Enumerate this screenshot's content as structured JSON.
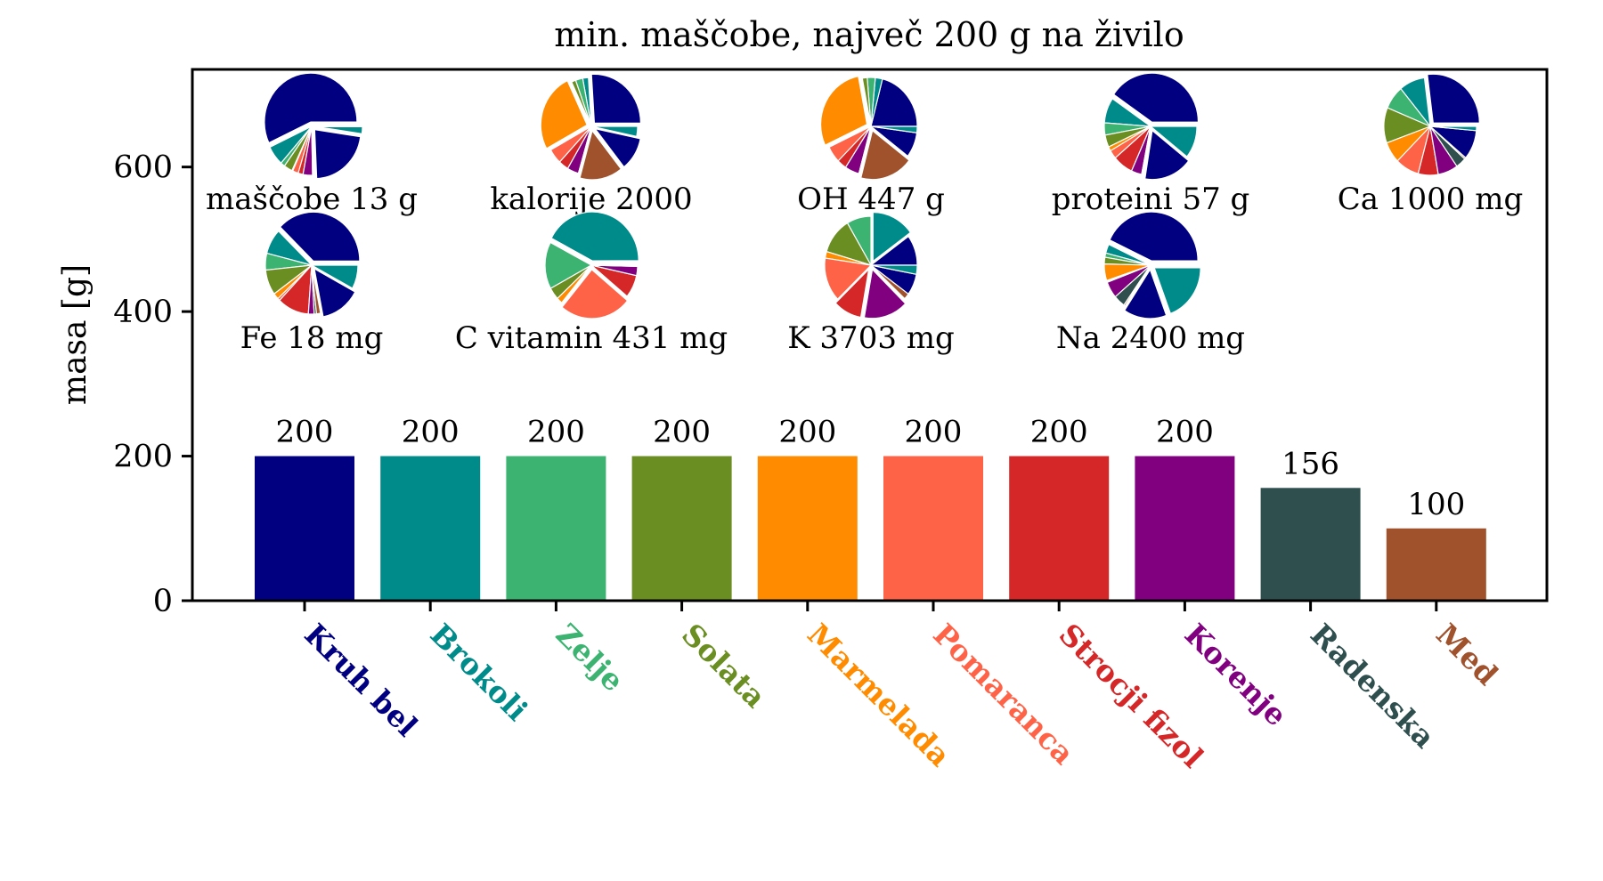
{
  "chart_data": {
    "type": "bar",
    "title": "min. maščobe, največ 200 g na živilo",
    "xlabel": "",
    "ylabel": "masa [g]",
    "ylim": [
      0,
      735
    ],
    "yticks": [
      0,
      200,
      400,
      600
    ],
    "grid": false,
    "categories": [
      "Kruh bel",
      "Brokoli",
      "Zelje",
      "Solata",
      "Marmelada",
      "Pomaranca",
      "Strocji fizol",
      "Korenje",
      "Radenska",
      "Med"
    ],
    "values": [
      200,
      200,
      200,
      200,
      200,
      200,
      200,
      200,
      156,
      100
    ],
    "value_labels": [
      "200",
      "200",
      "200",
      "200",
      "200",
      "200",
      "200",
      "200",
      "156",
      "100"
    ],
    "colors": [
      "#000080",
      "#008B8B",
      "#3CB371",
      "#6B8E23",
      "#FF8C00",
      "#FF6347",
      "#D62728",
      "#800080",
      "#2F4F4F",
      "#A0522D"
    ],
    "pie_slice_colors": [
      "#000080",
      "#008B8B",
      "#3CB371",
      "#6B8E23",
      "#FF8C00",
      "#FF6347",
      "#D62728",
      "#800080",
      "#2F4F4F",
      "#A0522D",
      "#000080",
      "#008B8B"
    ],
    "pies": [
      {
        "label": "maščobe 13 g",
        "fractions": [
          57,
          6.5,
          1.5,
          3,
          0.3,
          2,
          1.7,
          3.3,
          0.2,
          0.2,
          22,
          2.3
        ],
        "explode": [
          true,
          false,
          false,
          false,
          false,
          false,
          false,
          false,
          false,
          false,
          true,
          true
        ]
      },
      {
        "label": "kalorije 2000",
        "fractions": [
          26,
          2,
          2.5,
          1.5,
          26,
          5,
          3.5,
          4,
          0.2,
          15,
          11,
          3.3
        ],
        "explode": [
          true,
          false,
          false,
          false,
          true,
          false,
          false,
          false,
          false,
          true,
          true,
          false
        ]
      },
      {
        "label": "OH 447 g",
        "fractions": [
          21,
          2.5,
          2.8,
          1.7,
          29,
          5.5,
          3.3,
          5,
          0.2,
          18.6,
          8.3,
          2.1
        ],
        "explode": [
          false,
          false,
          false,
          false,
          true,
          false,
          false,
          false,
          false,
          true,
          false,
          false
        ]
      },
      {
        "label": "proteini 57 g",
        "fractions": [
          40,
          8.3,
          4,
          4,
          1.4,
          2.8,
          7,
          3.6,
          0.3,
          0.3,
          16.7,
          10.5
        ],
        "explode": [
          true,
          false,
          false,
          false,
          false,
          false,
          false,
          false,
          false,
          false,
          true,
          false
        ]
      },
      {
        "label": "Ca 1000 mg",
        "fractions": [
          27,
          9,
          7.8,
          11.7,
          7,
          8.3,
          7,
          7,
          3.6,
          0.5,
          9.7,
          1.4
        ],
        "explode": [
          true,
          false,
          false,
          false,
          false,
          false,
          false,
          false,
          false,
          false,
          false,
          false
        ]
      },
      {
        "label": "Fe 18 mg",
        "fractions": [
          37.5,
          8.3,
          5.5,
          8.3,
          2,
          0.8,
          11,
          2,
          0.8,
          1.4,
          14,
          7.8
        ],
        "explode": [
          true,
          false,
          false,
          false,
          false,
          false,
          false,
          false,
          false,
          false,
          true,
          false
        ]
      },
      {
        "label": "C vitamin 431 mg",
        "fractions": [
          0.1,
          42,
          15.5,
          4,
          2,
          25,
          7.5,
          3,
          0.1,
          0.1,
          0.1,
          0.1
        ],
        "explode": [
          false,
          true,
          false,
          false,
          false,
          true,
          false,
          false,
          false,
          false,
          false,
          false
        ]
      },
      {
        "label": "K 3703 mg",
        "fractions": [
          10,
          15,
          8.5,
          12,
          2.2,
          14.5,
          10,
          15.5,
          0.3,
          2,
          7,
          3
        ],
        "explode": [
          false,
          true,
          false,
          false,
          false,
          false,
          true,
          true,
          false,
          false,
          false,
          false
        ]
      },
      {
        "label": "Na 2400 mg",
        "fractions": [
          43,
          3,
          1.4,
          2.2,
          5.5,
          0.3,
          0.3,
          5.5,
          4,
          0.5,
          15,
          19.3
        ],
        "explode": [
          true,
          false,
          false,
          false,
          false,
          false,
          false,
          false,
          false,
          false,
          true,
          true
        ]
      }
    ]
  }
}
